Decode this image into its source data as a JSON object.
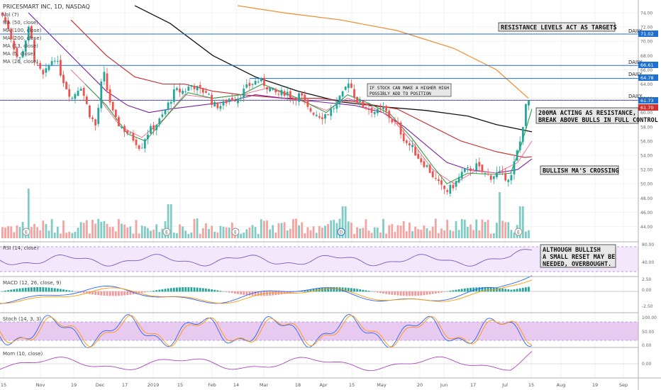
{
  "header": {
    "symbol_line": "PRICESMART INC, 1D, NASDAQ",
    "indicators": [
      "Vol (7)",
      "MA (50, close)",
      "MA (100, close)",
      "MA (200, close)",
      "MA (13, close)",
      "MA (5, close)",
      "MA (26, close)"
    ]
  },
  "panes": {
    "rsi": "RSI (14, close)",
    "macd": "MACD (12, 26, close, 9)",
    "stoch": "Stoch (14, 3, 3)",
    "mom": "Mom (10, close)"
  },
  "annotations": {
    "resistance": "RESISTANCE LEVELS ACT AS TARGETS",
    "higher_high_1": "IF STOCK CAN MAKE A HIGHER HIGH",
    "higher_high_2": "POSSIBLY ADD TO POSITION",
    "ma200_1": "200MA ACTING AS RESISTANCE,",
    "ma200_2": "BREAK ABOVE BULLS IN FULL CONTROL",
    "bullish_ma": "BULLISH MA'S CROSSING",
    "rsi_1": "ALTHOUGH BULLISH",
    "rsi_2": "A SMALL RESET MAY BE",
    "rsi_3": "NEEDED, OVERBOUGHT."
  },
  "colors": {
    "up": "#26a69a",
    "down": "#ef5350",
    "ma50": "#7b1fa2",
    "ma100": "#c62828",
    "ma200": "#111111",
    "ma13": "#2e9e44",
    "ma5": "#f06292",
    "ma26": "#ef8a2c",
    "level": "#1e6fd0",
    "price_tag": "#1e6fd0",
    "current_tag": "#d32f2f"
  },
  "chart_data": {
    "type": "candlestick",
    "price_axis": {
      "ticks": [
        "74.00",
        "72.00",
        "70.00",
        "68.00",
        "66.00",
        "64.00",
        "62.00",
        "60.00",
        "58.00",
        "56.00",
        "54.00",
        "52.00",
        "50.00",
        "48.00",
        "46.00",
        "44.00"
      ]
    },
    "time_axis": [
      "15",
      "Nov",
      "19",
      "Dec",
      "17",
      "2019",
      "15",
      "Feb",
      "14",
      "Mar",
      "18",
      "Apr",
      "15",
      "May",
      "20",
      "Jun",
      "17",
      "Jul",
      "15",
      "Aug",
      "19",
      "Sep"
    ],
    "levels": [
      {
        "label": "DAILY",
        "value": 71.02,
        "tag": "71.02"
      },
      {
        "label": "DAILY",
        "value": 66.61,
        "tag": "66.61"
      },
      {
        "label": "DAILY",
        "value": 64.78,
        "tag": "64.78"
      },
      {
        "label": "DAILY",
        "value": 61.73,
        "tag": "61.73"
      }
    ],
    "last_price": {
      "value": 61.7,
      "tag": "61.70"
    },
    "rsi_axis": [
      "80.00",
      "40.00"
    ],
    "macd_axis": [
      "2.50",
      "0.00",
      "-2.50"
    ],
    "stoch_axis": [
      "100.00",
      "50.00",
      "0.00"
    ],
    "mom_axis": [
      "0.00"
    ],
    "event_markers": [
      "E",
      "E",
      "E",
      "D",
      "E",
      "E"
    ]
  }
}
